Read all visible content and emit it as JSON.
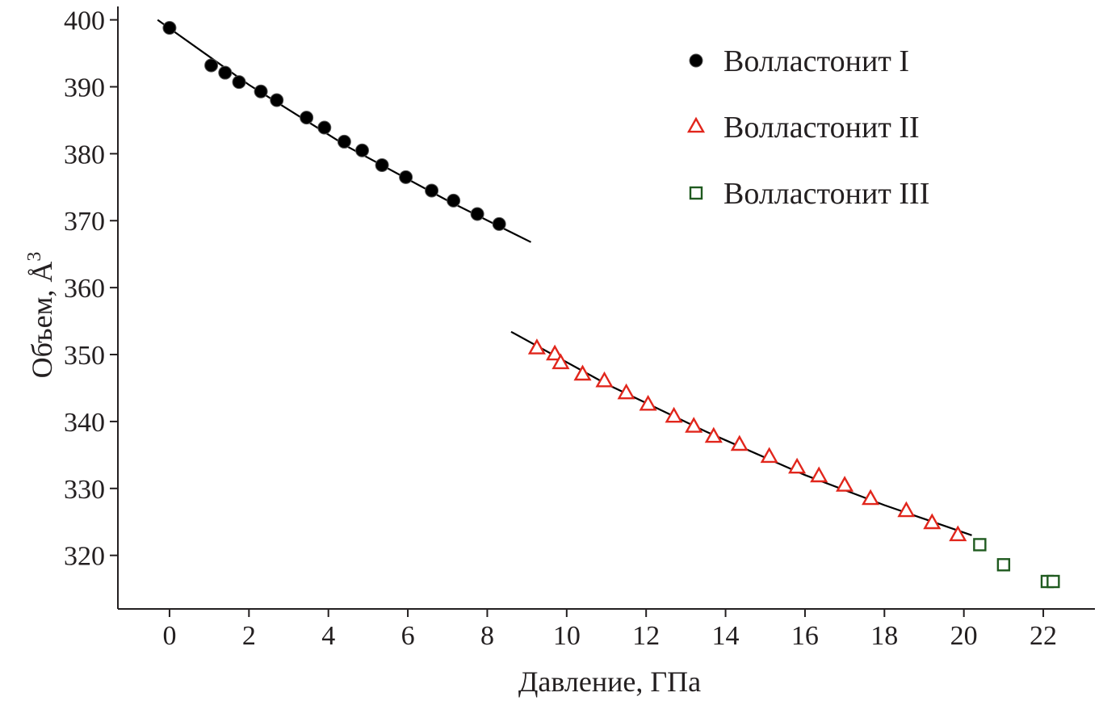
{
  "chart_data": {
    "type": "scatter",
    "title": "",
    "xlabel": "Давление, ГПа",
    "ylabel": "Объем, Å",
    "ylabel_superscript": "3",
    "xlim": [
      -1.3,
      23.3
    ],
    "ylim": [
      312,
      402
    ],
    "x_ticks": [
      0,
      2,
      4,
      6,
      8,
      10,
      12,
      14,
      16,
      18,
      20,
      22
    ],
    "y_ticks": [
      320,
      330,
      340,
      350,
      360,
      370,
      380,
      390,
      400
    ],
    "grid": false,
    "legend_position": "top-right",
    "colors": {
      "axis": "#231f20",
      "series1": "#000000",
      "series2": "#e1261c",
      "series3": "#1f5a1f",
      "fit": "#000000"
    },
    "series": [
      {
        "name": "Волластонит I",
        "marker": "circle",
        "color": "#000000",
        "points": [
          [
            0.0,
            398.8
          ],
          [
            1.05,
            393.2
          ],
          [
            1.4,
            392.1
          ],
          [
            1.75,
            390.7
          ],
          [
            2.3,
            389.3
          ],
          [
            2.7,
            388.0
          ],
          [
            3.45,
            385.4
          ],
          [
            3.9,
            383.9
          ],
          [
            4.4,
            381.8
          ],
          [
            4.85,
            380.5
          ],
          [
            5.35,
            378.3
          ],
          [
            5.95,
            376.5
          ],
          [
            6.6,
            374.5
          ],
          [
            7.15,
            373.0
          ],
          [
            7.75,
            371.0
          ],
          [
            8.3,
            369.5
          ]
        ],
        "fit": [
          [
            -0.3,
            400.0
          ],
          [
            2.0,
            390.3
          ],
          [
            4.5,
            381.0
          ],
          [
            7.0,
            373.0
          ],
          [
            9.1,
            366.8
          ]
        ]
      },
      {
        "name": "Волластонит II",
        "marker": "triangle",
        "color": "#e1261c",
        "points": [
          [
            9.25,
            350.9
          ],
          [
            9.7,
            350.0
          ],
          [
            9.85,
            348.7
          ],
          [
            10.4,
            347.0
          ],
          [
            10.95,
            346.0
          ],
          [
            11.5,
            344.2
          ],
          [
            12.05,
            342.5
          ],
          [
            12.7,
            340.7
          ],
          [
            13.2,
            339.2
          ],
          [
            13.7,
            337.7
          ],
          [
            14.35,
            336.5
          ],
          [
            15.1,
            334.7
          ],
          [
            15.8,
            333.1
          ],
          [
            16.35,
            331.8
          ],
          [
            17.0,
            330.4
          ],
          [
            17.65,
            328.4
          ],
          [
            18.55,
            326.6
          ],
          [
            19.2,
            324.8
          ],
          [
            19.85,
            323.0
          ]
        ],
        "fit": [
          [
            8.6,
            353.4
          ],
          [
            11.0,
            345.6
          ],
          [
            13.5,
            338.5
          ],
          [
            16.0,
            332.0
          ],
          [
            18.0,
            327.5
          ],
          [
            20.2,
            323.0
          ]
        ]
      },
      {
        "name": "Волластонит III",
        "marker": "square",
        "color": "#1f5a1f",
        "points": [
          [
            20.4,
            321.6
          ],
          [
            21.0,
            318.6
          ],
          [
            22.1,
            316.1
          ],
          [
            22.25,
            316.1
          ]
        ]
      }
    ]
  }
}
